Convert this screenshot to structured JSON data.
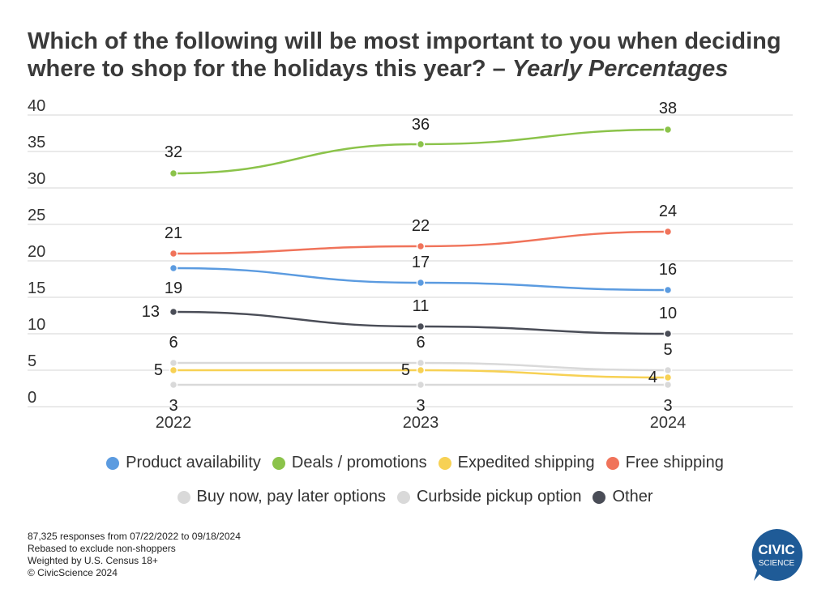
{
  "title": {
    "main": "Which of the following will be most important to you when deciding where to shop for the holidays this year? – ",
    "emphasis": "Yearly Percentages"
  },
  "chart_data": {
    "type": "line",
    "x": [
      "2022",
      "2023",
      "2024"
    ],
    "ylim": [
      0,
      40
    ],
    "yticks": [
      0,
      5,
      10,
      15,
      20,
      25,
      30,
      35,
      40
    ],
    "grid": true,
    "legend_position": "bottom",
    "series": [
      {
        "name": "Product availability",
        "color": "#5b9be0",
        "values": [
          19,
          17,
          16
        ]
      },
      {
        "name": "Deals / promotions",
        "color": "#8bc34a",
        "values": [
          32,
          36,
          38
        ]
      },
      {
        "name": "Expedited shipping",
        "color": "#f7d154",
        "values": [
          5,
          5,
          4
        ]
      },
      {
        "name": "Free shipping",
        "color": "#f0735a",
        "values": [
          21,
          22,
          24
        ]
      },
      {
        "name": "Buy now, pay later options",
        "color": "#d9d9d9",
        "values": [
          6,
          6,
          5
        ]
      },
      {
        "name": "Curbside pickup option",
        "color": "#d9d9d9",
        "values": [
          3,
          3,
          3
        ]
      },
      {
        "name": "Other",
        "color": "#4a4d57",
        "values": [
          13,
          11,
          10
        ]
      }
    ]
  },
  "legend": {
    "row1": [
      {
        "label": "Product availability",
        "color": "#5b9be0"
      },
      {
        "label": "Deals / promotions",
        "color": "#8bc34a"
      },
      {
        "label": "Expedited shipping",
        "color": "#f7d154"
      },
      {
        "label": "Free shipping",
        "color": "#f0735a"
      }
    ],
    "row2": [
      {
        "label": "Buy now, pay later options",
        "color": "#d9d9d9"
      },
      {
        "label": "Curbside pickup option",
        "color": "#d9d9d9"
      },
      {
        "label": "Other",
        "color": "#4a4d57"
      }
    ]
  },
  "footer": {
    "line1": "87,325 responses from 07/22/2022 to 09/18/2024",
    "line2": "Rebased to exclude non-shoppers",
    "line3": "Weighted by U.S. Census 18+",
    "line4": "© CivicScience 2024"
  },
  "logo": {
    "line1": "CIVIC",
    "line2": "SCIENCE",
    "color": "#1f5b97"
  }
}
